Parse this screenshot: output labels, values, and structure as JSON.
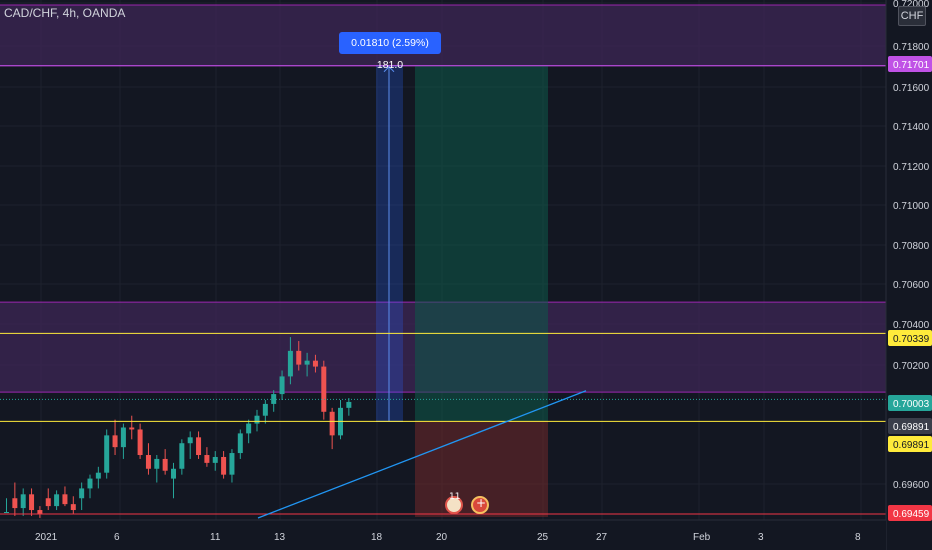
{
  "header": {
    "symbol": "CAD/CHF, 4h, OANDA",
    "currency": "CHF"
  },
  "measure_label": "0.01810 (2.59%) 181.0",
  "events": {
    "earnings_count": "11"
  },
  "colors": {
    "background": "#131722",
    "grid": "#1e222d",
    "axis_text": "#d1d4dc",
    "bull": "#26a69a",
    "bear": "#ef5350",
    "zone": "#3b2553",
    "zone_border": "#9c27b0",
    "yellow": "#ffeb3b",
    "trendline": "#2196f3",
    "measure": "#2962ff",
    "red_line": "#f23645"
  },
  "chart_data": {
    "type": "candlestick",
    "title": "CAD/CHF, 4h, OANDA",
    "ylim": [
      0.6943,
      0.7201
    ],
    "price_ticks": [
      "0.72000",
      "0.71800",
      "0.71600",
      "0.71400",
      "0.71200",
      "0.71000",
      "0.70800",
      "0.70600",
      "0.70400",
      "0.70200",
      "0.69600"
    ],
    "time_ticks": [
      "2021",
      "6",
      "11",
      "13",
      "18",
      "20",
      "25",
      "27",
      "Feb",
      "3",
      "8"
    ],
    "price_badges": [
      {
        "label": "0.71701",
        "value": 0.71701,
        "style": "magenta"
      },
      {
        "label": "0.70339",
        "value": 0.70339,
        "style": "yellow"
      },
      {
        "label": "0.70003",
        "value": 0.70003,
        "style": "teal"
      },
      {
        "label": "0.69891",
        "value": 0.69891,
        "style": "gray"
      },
      {
        "label": "0.69891",
        "value": 0.69878,
        "style": "yellow"
      },
      {
        "label": "0.69459",
        "value": 0.69459,
        "style": "red"
      }
    ],
    "horizontal_lines": [
      {
        "value": 0.71701,
        "color": "magenta"
      },
      {
        "value": 0.70339,
        "color": "yellow"
      },
      {
        "value": 0.69891,
        "color": "yellow"
      },
      {
        "value": 0.69459,
        "color": "red"
      }
    ],
    "zones": [
      {
        "top": 0.7201,
        "bottom": 0.71701
      },
      {
        "top": 0.70498,
        "bottom": 0.7004
      }
    ],
    "trend_line": {
      "start": [
        0,
        0.6943
      ],
      "end": [
        1,
        0.70047
      ]
    },
    "long_position": {
      "entry": 0.69891,
      "target": 0.71701,
      "stop": 0.6943,
      "label": "0.01810 (2.59%) 181.0"
    },
    "candles": [
      [
        0.6943,
        0.695,
        0.6943,
        0.6943
      ],
      [
        0.695,
        0.6958,
        0.6941,
        0.6945
      ],
      [
        0.6945,
        0.6955,
        0.6941,
        0.6952
      ],
      [
        0.6952,
        0.6955,
        0.6941,
        0.6944
      ],
      [
        0.6944,
        0.6946,
        0.694,
        0.6942
      ],
      [
        0.695,
        0.6955,
        0.6944,
        0.6946
      ],
      [
        0.6946,
        0.6954,
        0.6944,
        0.6952
      ],
      [
        0.6952,
        0.6956,
        0.6946,
        0.6947
      ],
      [
        0.6947,
        0.6951,
        0.6942,
        0.6944
      ],
      [
        0.695,
        0.6958,
        0.6944,
        0.6955
      ],
      [
        0.6955,
        0.6962,
        0.695,
        0.696
      ],
      [
        0.696,
        0.6966,
        0.6955,
        0.6963
      ],
      [
        0.6963,
        0.6985,
        0.696,
        0.6982
      ],
      [
        0.6982,
        0.699,
        0.6972,
        0.6976
      ],
      [
        0.6976,
        0.6988,
        0.697,
        0.6986
      ],
      [
        0.6986,
        0.6992,
        0.698,
        0.6985
      ],
      [
        0.6985,
        0.6988,
        0.697,
        0.6972
      ],
      [
        0.6972,
        0.6978,
        0.6962,
        0.6965
      ],
      [
        0.6965,
        0.6972,
        0.6958,
        0.697
      ],
      [
        0.697,
        0.6975,
        0.6962,
        0.6964
      ],
      [
        0.696,
        0.6968,
        0.695,
        0.6965
      ],
      [
        0.6965,
        0.698,
        0.6962,
        0.6978
      ],
      [
        0.6978,
        0.6984,
        0.697,
        0.6981
      ],
      [
        0.6981,
        0.6984,
        0.697,
        0.6972
      ],
      [
        0.6972,
        0.6976,
        0.6966,
        0.6968
      ],
      [
        0.6968,
        0.6974,
        0.6964,
        0.6971
      ],
      [
        0.6971,
        0.6974,
        0.696,
        0.6962
      ],
      [
        0.6962,
        0.6975,
        0.6958,
        0.6973
      ],
      [
        0.6973,
        0.6985,
        0.697,
        0.6983
      ],
      [
        0.6983,
        0.699,
        0.6978,
        0.6988
      ],
      [
        0.6988,
        0.6995,
        0.6984,
        0.6992
      ],
      [
        0.6992,
        0.7,
        0.6988,
        0.6998
      ],
      [
        0.6998,
        0.7005,
        0.6994,
        0.7003
      ],
      [
        0.7003,
        0.7015,
        0.7,
        0.7012
      ],
      [
        0.7012,
        0.7032,
        0.7008,
        0.7025
      ],
      [
        0.7025,
        0.703,
        0.7015,
        0.7018
      ],
      [
        0.7018,
        0.7024,
        0.7012,
        0.702
      ],
      [
        0.702,
        0.7023,
        0.7014,
        0.7017
      ],
      [
        0.7017,
        0.702,
        0.699,
        0.6994
      ],
      [
        0.6994,
        0.6996,
        0.6975,
        0.6982
      ],
      [
        0.6982,
        0.7,
        0.698,
        0.6996
      ],
      [
        0.6996,
        0.7001,
        0.6992,
        0.6999
      ]
    ]
  }
}
